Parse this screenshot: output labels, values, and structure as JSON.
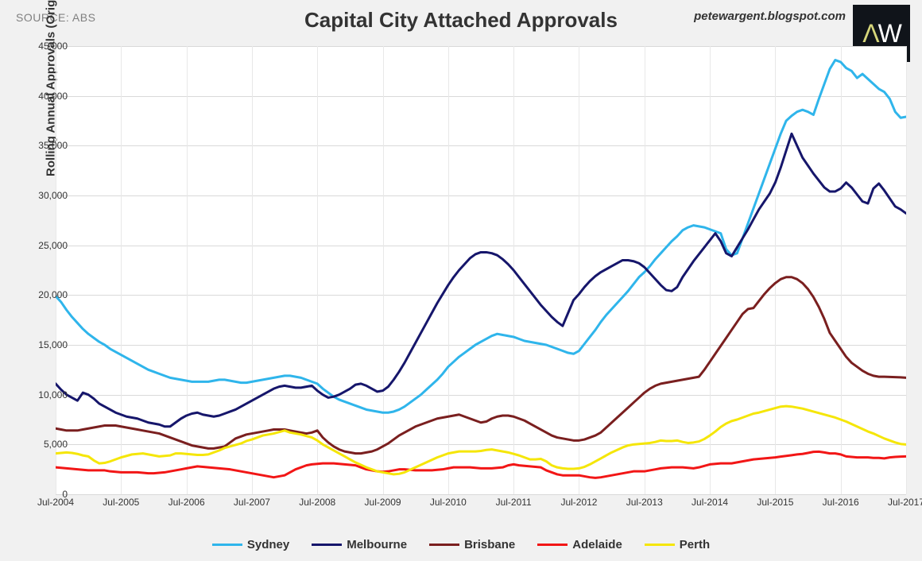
{
  "source_label": "SOURCE: ABS",
  "title": "Capital City Attached Approvals",
  "credit": "petewargent.blogspot.com",
  "logo": {
    "letter1": "Λ",
    "letter2": "W",
    "color1": "#d6d67a",
    "color2": "#ffffff",
    "bg": "#10141a"
  },
  "chart": {
    "type": "line",
    "background_color": "#ffffff",
    "frame_color": "#f1f1f1",
    "grid_color": "#d9d9d9",
    "x_grid_color": "#e8e8e8",
    "ylabel": "Rolling Annual Approvals (Original)",
    "label_fontsize": 15,
    "title_fontsize": 26,
    "line_width": 3,
    "ylim": [
      0,
      45000
    ],
    "ytick_step": 5000,
    "yticks": [
      0,
      5000,
      10000,
      15000,
      20000,
      25000,
      30000,
      35000,
      40000,
      45000
    ],
    "ytick_labels": [
      "0",
      "5,000",
      "10,000",
      "15,000",
      "20,000",
      "25,000",
      "30,000",
      "35,000",
      "40,000",
      "45,000"
    ],
    "xticks": [
      0,
      12,
      24,
      36,
      48,
      60,
      72,
      84,
      96,
      108,
      120,
      132,
      144,
      156
    ],
    "xtick_labels": [
      "Jul-2004",
      "Jul-2005",
      "Jul-2006",
      "Jul-2007",
      "Jul-2008",
      "Jul-2009",
      "Jul-2010",
      "Jul-2011",
      "Jul-2012",
      "Jul-2013",
      "Jul-2014",
      "Jul-2015",
      "Jul-2016",
      "Jul-2017"
    ],
    "x_count": 157,
    "series": [
      {
        "name": "Sydney",
        "color": "#2fb5eb",
        "values": [
          19900,
          19300,
          18500,
          17800,
          17200,
          16600,
          16100,
          15700,
          15300,
          15000,
          14600,
          14300,
          14000,
          13700,
          13400,
          13100,
          12800,
          12500,
          12300,
          12100,
          11900,
          11700,
          11600,
          11500,
          11400,
          11300,
          11300,
          11300,
          11300,
          11400,
          11500,
          11500,
          11400,
          11300,
          11200,
          11200,
          11300,
          11400,
          11500,
          11600,
          11700,
          11800,
          11900,
          11900,
          11800,
          11700,
          11500,
          11300,
          11100,
          10600,
          10200,
          9800,
          9500,
          9300,
          9100,
          8900,
          8700,
          8500,
          8400,
          8300,
          8200,
          8200,
          8300,
          8500,
          8800,
          9200,
          9600,
          10000,
          10500,
          11000,
          11500,
          12100,
          12800,
          13300,
          13800,
          14200,
          14600,
          15000,
          15300,
          15600,
          15900,
          16100,
          16000,
          15900,
          15800,
          15600,
          15400,
          15300,
          15200,
          15100,
          15000,
          14800,
          14600,
          14400,
          14200,
          14100,
          14400,
          15100,
          15800,
          16500,
          17300,
          18000,
          18600,
          19200,
          19800,
          20400,
          21100,
          21800,
          22300,
          22900,
          23600,
          24200,
          24800,
          25400,
          25900,
          26500,
          26800,
          27000,
          26900,
          26800,
          26600,
          26400,
          26200,
          24600,
          24000,
          24200,
          25700,
          27200,
          28700,
          30200,
          31700,
          33200,
          34700,
          36200,
          37500,
          38000,
          38400,
          38600,
          38400,
          38100,
          39700,
          41200,
          42700,
          43600,
          43400,
          42800,
          42500,
          41800,
          42200,
          41700,
          41200,
          40700,
          40400,
          39700,
          38400,
          37800,
          37900
        ]
      },
      {
        "name": "Melbourne",
        "color": "#16166b",
        "values": [
          11100,
          10500,
          10000,
          9700,
          9400,
          10200,
          10000,
          9600,
          9100,
          8800,
          8500,
          8200,
          8000,
          7800,
          7700,
          7600,
          7400,
          7200,
          7100,
          7000,
          6800,
          6800,
          7200,
          7600,
          7900,
          8100,
          8200,
          8000,
          7900,
          7800,
          7900,
          8100,
          8300,
          8500,
          8800,
          9100,
          9400,
          9700,
          10000,
          10300,
          10600,
          10800,
          10900,
          10800,
          10700,
          10700,
          10800,
          10900,
          10400,
          10000,
          9700,
          9800,
          10000,
          10300,
          10600,
          11000,
          11100,
          10900,
          10600,
          10300,
          10400,
          10800,
          11500,
          12300,
          13200,
          14200,
          15200,
          16200,
          17200,
          18200,
          19200,
          20100,
          21000,
          21800,
          22500,
          23100,
          23700,
          24100,
          24300,
          24300,
          24200,
          24000,
          23600,
          23100,
          22500,
          21800,
          21100,
          20400,
          19700,
          19000,
          18400,
          17800,
          17300,
          16900,
          18200,
          19500,
          20100,
          20800,
          21400,
          21900,
          22300,
          22600,
          22900,
          23200,
          23500,
          23500,
          23400,
          23200,
          22800,
          22200,
          21600,
          21000,
          20500,
          20400,
          20800,
          21800,
          22600,
          23400,
          24100,
          24800,
          25500,
          26200,
          25400,
          24200,
          23900,
          24800,
          25700,
          26600,
          27600,
          28600,
          29400,
          30200,
          31300,
          32800,
          34500,
          36200,
          35000,
          33800,
          33000,
          32200,
          31500,
          30800,
          30400,
          30400,
          30700,
          31300,
          30800,
          30100,
          29400,
          29200,
          30700,
          31200,
          30500,
          29700,
          28900,
          28600,
          28200
        ]
      },
      {
        "name": "Brisbane",
        "color": "#7a1f1f",
        "values": [
          6600,
          6500,
          6400,
          6400,
          6400,
          6500,
          6600,
          6700,
          6800,
          6900,
          6900,
          6900,
          6800,
          6700,
          6600,
          6500,
          6400,
          6300,
          6200,
          6100,
          5900,
          5700,
          5500,
          5300,
          5100,
          4900,
          4800,
          4700,
          4600,
          4600,
          4700,
          4800,
          5200,
          5600,
          5800,
          6000,
          6100,
          6200,
          6300,
          6400,
          6500,
          6500,
          6500,
          6400,
          6300,
          6200,
          6100,
          6200,
          6400,
          5700,
          5200,
          4800,
          4500,
          4300,
          4200,
          4100,
          4100,
          4200,
          4300,
          4500,
          4800,
          5100,
          5500,
          5900,
          6200,
          6500,
          6800,
          7000,
          7200,
          7400,
          7600,
          7700,
          7800,
          7900,
          8000,
          7800,
          7600,
          7400,
          7200,
          7300,
          7600,
          7800,
          7900,
          7900,
          7800,
          7600,
          7400,
          7100,
          6800,
          6500,
          6200,
          5900,
          5700,
          5600,
          5500,
          5400,
          5400,
          5500,
          5700,
          5900,
          6200,
          6700,
          7200,
          7700,
          8200,
          8700,
          9200,
          9700,
          10200,
          10600,
          10900,
          11100,
          11200,
          11300,
          11400,
          11500,
          11600,
          11700,
          11800,
          12500,
          13300,
          14100,
          14900,
          15700,
          16500,
          17300,
          18100,
          18600,
          18700,
          19400,
          20100,
          20700,
          21200,
          21600,
          21800,
          21800,
          21600,
          21200,
          20600,
          19800,
          18800,
          17600,
          16200,
          15400,
          14600,
          13800,
          13200,
          12800,
          12400,
          12100,
          11900,
          11800,
          11800,
          11780,
          11760,
          11740,
          11700
        ]
      },
      {
        "name": "Adelaide",
        "color": "#f21616",
        "values": [
          2700,
          2650,
          2600,
          2550,
          2500,
          2450,
          2400,
          2400,
          2400,
          2400,
          2300,
          2250,
          2200,
          2200,
          2200,
          2200,
          2150,
          2100,
          2100,
          2150,
          2200,
          2300,
          2400,
          2500,
          2600,
          2700,
          2800,
          2750,
          2700,
          2650,
          2600,
          2550,
          2500,
          2400,
          2300,
          2200,
          2100,
          2000,
          1900,
          1800,
          1700,
          1800,
          1900,
          2200,
          2500,
          2700,
          2900,
          3000,
          3050,
          3100,
          3100,
          3100,
          3050,
          3000,
          2950,
          2900,
          2700,
          2500,
          2400,
          2300,
          2250,
          2300,
          2400,
          2500,
          2500,
          2450,
          2400,
          2400,
          2400,
          2400,
          2450,
          2500,
          2600,
          2700,
          2700,
          2700,
          2700,
          2650,
          2600,
          2600,
          2600,
          2650,
          2700,
          2900,
          3000,
          2900,
          2850,
          2800,
          2750,
          2700,
          2400,
          2200,
          2000,
          1900,
          1900,
          1900,
          1900,
          1800,
          1700,
          1650,
          1700,
          1800,
          1900,
          2000,
          2100,
          2200,
          2300,
          2300,
          2300,
          2400,
          2500,
          2600,
          2650,
          2700,
          2700,
          2700,
          2650,
          2600,
          2700,
          2850,
          3000,
          3050,
          3100,
          3100,
          3100,
          3200,
          3300,
          3400,
          3500,
          3550,
          3600,
          3650,
          3700,
          3780,
          3850,
          3920,
          4000,
          4050,
          4150,
          4260,
          4280,
          4200,
          4100,
          4100,
          4000,
          3800,
          3750,
          3700,
          3700,
          3700,
          3650,
          3650,
          3600,
          3700,
          3750,
          3780,
          3800
        ]
      },
      {
        "name": "Perth",
        "color": "#f5e608",
        "values": [
          4100,
          4150,
          4200,
          4150,
          4050,
          3900,
          3800,
          3400,
          3100,
          3150,
          3300,
          3500,
          3700,
          3850,
          4000,
          4050,
          4100,
          4000,
          3900,
          3800,
          3850,
          3900,
          4100,
          4100,
          4050,
          4000,
          3950,
          3950,
          4000,
          4200,
          4400,
          4650,
          4800,
          4950,
          5100,
          5350,
          5500,
          5700,
          5900,
          6000,
          6100,
          6250,
          6400,
          6200,
          6100,
          6000,
          5850,
          5700,
          5400,
          5000,
          4700,
          4400,
          4100,
          3800,
          3500,
          3200,
          2950,
          2700,
          2500,
          2300,
          2200,
          2100,
          2000,
          2050,
          2200,
          2450,
          2700,
          2950,
          3200,
          3450,
          3700,
          3900,
          4100,
          4200,
          4300,
          4300,
          4300,
          4300,
          4350,
          4450,
          4500,
          4400,
          4300,
          4200,
          4050,
          3900,
          3700,
          3500,
          3500,
          3550,
          3300,
          2900,
          2700,
          2600,
          2550,
          2550,
          2600,
          2750,
          3000,
          3300,
          3600,
          3900,
          4200,
          4450,
          4700,
          4900,
          5000,
          5050,
          5100,
          5150,
          5250,
          5400,
          5350,
          5350,
          5400,
          5250,
          5150,
          5200,
          5300,
          5550,
          5900,
          6300,
          6750,
          7100,
          7350,
          7500,
          7700,
          7900,
          8100,
          8200,
          8350,
          8500,
          8650,
          8800,
          8850,
          8800,
          8700,
          8600,
          8450,
          8300,
          8150,
          8000,
          7850,
          7700,
          7500,
          7300,
          7050,
          6800,
          6550,
          6300,
          6100,
          5850,
          5600,
          5400,
          5200,
          5050,
          5000
        ]
      }
    ],
    "legend_order": [
      "Sydney",
      "Melbourne",
      "Brisbane",
      "Adelaide",
      "Perth"
    ]
  }
}
